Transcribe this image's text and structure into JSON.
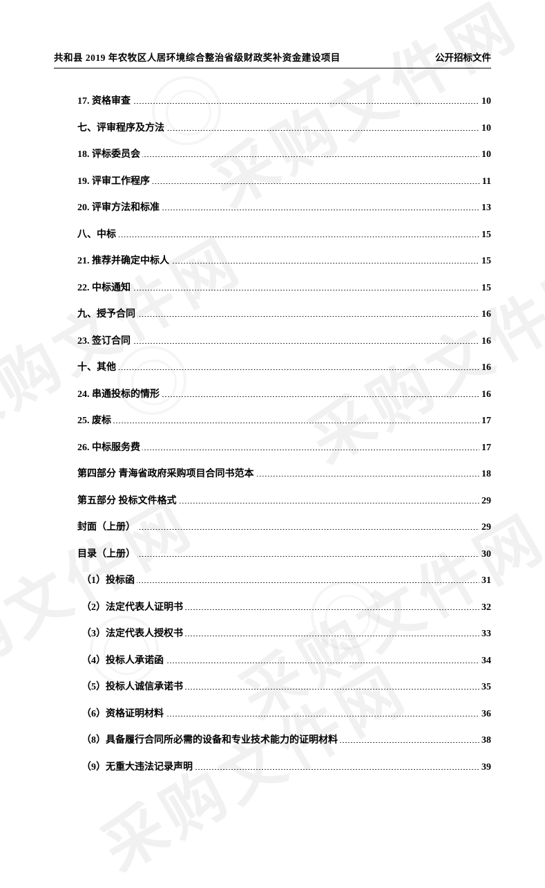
{
  "header": {
    "left": "共和县 2019 年农牧区人居环境综合整治省级财政奖补资金建设项目",
    "right": "公开招标文件"
  },
  "toc": [
    {
      "label": "17. 资格审查",
      "page": "10"
    },
    {
      "label": "七、评审程序及方法",
      "page": "10"
    },
    {
      "label": "18. 评标委员会",
      "page": "10"
    },
    {
      "label": "19. 评审工作程序",
      "page": "11"
    },
    {
      "label": "20. 评审方法和标准",
      "page": "13"
    },
    {
      "label": "八、中标",
      "page": "15"
    },
    {
      "label": "21. 推荐并确定中标人",
      "page": "15"
    },
    {
      "label": "22. 中标通知",
      "page": "15"
    },
    {
      "label": "九、授予合同",
      "page": "16"
    },
    {
      "label": "23. 签订合同",
      "page": "16"
    },
    {
      "label": "十、其他",
      "page": "16"
    },
    {
      "label": "24.  串通投标的情形",
      "page": "16"
    },
    {
      "label": "25.  废标",
      "page": "17"
    },
    {
      "label": "26.  中标服务费",
      "page": "17"
    },
    {
      "label": "第四部分    青海省政府采购项目合同书范本",
      "page": "18"
    },
    {
      "label": "第五部分    投标文件格式",
      "page": "29"
    },
    {
      "label": "封面（上册）",
      "page": "29"
    },
    {
      "label": "目录（上册）",
      "page": "30"
    },
    {
      "label": "（1）投标函",
      "page": "31"
    },
    {
      "label": "（2）法定代表人证明书",
      "page": "32"
    },
    {
      "label": "（3）法定代表人授权书",
      "page": "33"
    },
    {
      "label": "（4）投标人承诺函",
      "page": "34"
    },
    {
      "label": "（5）投标人诚信承诺书",
      "page": "35"
    },
    {
      "label": "（6）资格证明材料",
      "page": "36"
    },
    {
      "label": "（8）具备履行合同所必需的设备和专业技术能力的证明材料",
      "page": "38"
    },
    {
      "label": "（9）无重大违法记录声明",
      "page": "39"
    }
  ],
  "watermark_text": "采购文件网",
  "watermark_color": "rgba(200,200,200,0.25)",
  "text_color": "#000000",
  "background_color": "#ffffff"
}
